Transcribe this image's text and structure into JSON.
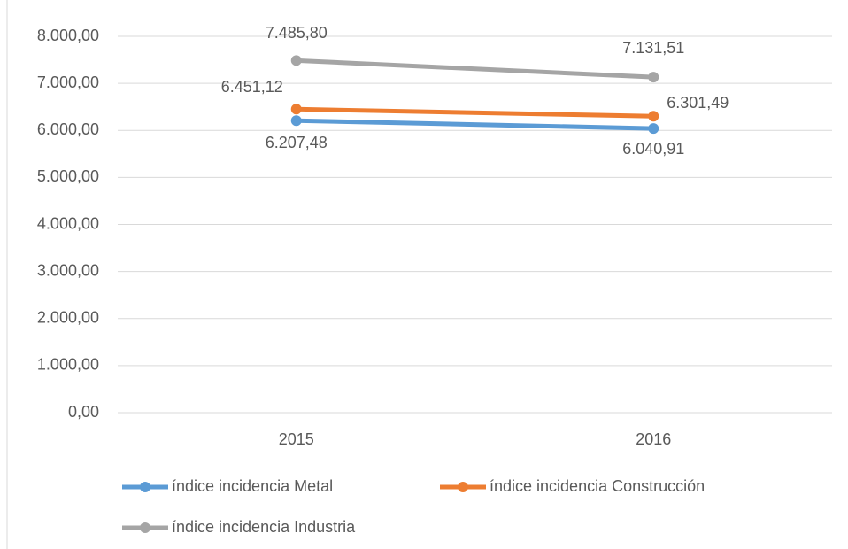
{
  "chart_data": {
    "type": "line",
    "categories": [
      "2015",
      "2016"
    ],
    "series": [
      {
        "name": "índice incidencia Metal",
        "color": "#5b9bd5",
        "values": [
          6207.48,
          6040.91
        ],
        "value_labels": [
          "6.207,48",
          "6.040,91"
        ]
      },
      {
        "name": "índice incidencia Construcción",
        "color": "#ed7d31",
        "values": [
          6451.12,
          6301.49
        ],
        "value_labels": [
          "6.451,12",
          "6.301,49"
        ]
      },
      {
        "name": "índice incidencia Industria",
        "color": "#a5a5a5",
        "values": [
          7485.8,
          7131.51
        ],
        "value_labels": [
          "7.485,80",
          "7.131,51"
        ]
      }
    ],
    "ylim": [
      0,
      8000
    ],
    "yticks": [
      {
        "value": 0,
        "label": "0,00"
      },
      {
        "value": 1000,
        "label": "1.000,00"
      },
      {
        "value": 2000,
        "label": "2.000,00"
      },
      {
        "value": 3000,
        "label": "3.000,00"
      },
      {
        "value": 4000,
        "label": "4.000,00"
      },
      {
        "value": 5000,
        "label": "5.000,00"
      },
      {
        "value": 6000,
        "label": "6.000,00"
      },
      {
        "value": 7000,
        "label": "7.000,00"
      },
      {
        "value": 8000,
        "label": "8.000,00"
      }
    ],
    "grid": true,
    "legend": "bottom"
  }
}
